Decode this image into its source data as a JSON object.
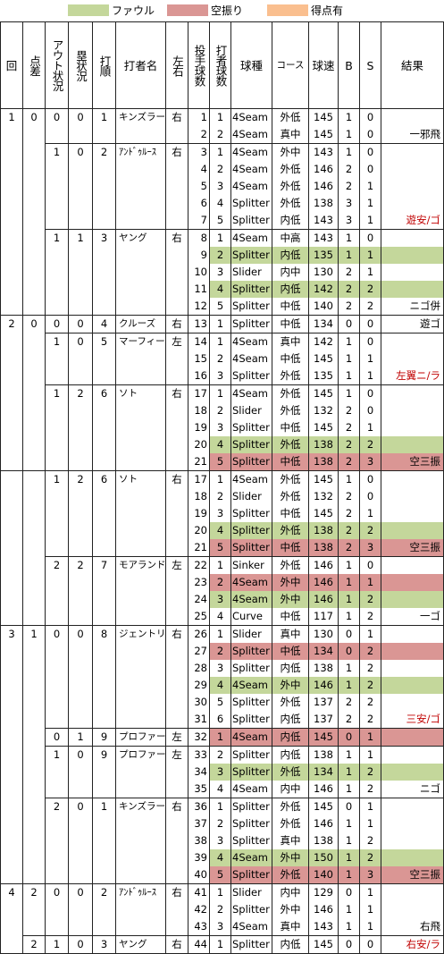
{
  "legend": [
    {
      "label": "ファウル",
      "color": "#c4d79b"
    },
    {
      "label": "空振り",
      "color": "#da9694"
    },
    {
      "label": "得点有",
      "color": "#fabf8f"
    }
  ],
  "headers": {
    "inning": "回",
    "diff": "点差",
    "outs": "アウト状況",
    "runners": "塁状況",
    "order": "打順",
    "batter": "打者名",
    "hand": "左右",
    "pitcher_count": "投手球数",
    "batter_count": "打者球数",
    "pitch_type": "球種",
    "course": "コース",
    "speed": "球速",
    "b": "B",
    "s": "S",
    "result": "結果"
  },
  "rows": [
    {
      "inn": "1",
      "diff": "0",
      "out": "0",
      "run": "0",
      "ord": "1",
      "name": "キンズラー",
      "hand": "右",
      "pc": "1",
      "bc": "1",
      "type": "4Seam",
      "course": "外低",
      "speed": "145",
      "b": "1",
      "s": "0",
      "res": "",
      "hl": "",
      "start": "inning"
    },
    {
      "pc": "2",
      "bc": "2",
      "type": "4Seam",
      "course": "真中",
      "speed": "145",
      "b": "1",
      "s": "0",
      "res": "一邪飛",
      "hl": ""
    },
    {
      "out": "1",
      "run": "0",
      "ord": "2",
      "name": "ｱﾝﾄﾞｩﾙｰｽ",
      "hand": "右",
      "pc": "3",
      "bc": "1",
      "type": "4Seam",
      "course": "外中",
      "speed": "143",
      "b": "1",
      "s": "0",
      "res": "",
      "hl": "",
      "start": "batter"
    },
    {
      "pc": "4",
      "bc": "2",
      "type": "4Seam",
      "course": "外低",
      "speed": "146",
      "b": "2",
      "s": "0",
      "res": "",
      "hl": ""
    },
    {
      "pc": "5",
      "bc": "3",
      "type": "4Seam",
      "course": "外低",
      "speed": "146",
      "b": "2",
      "s": "1",
      "res": "",
      "hl": ""
    },
    {
      "pc": "6",
      "bc": "4",
      "type": "Splitter",
      "course": "外低",
      "speed": "138",
      "b": "3",
      "s": "1",
      "res": "",
      "hl": ""
    },
    {
      "pc": "7",
      "bc": "5",
      "type": "Splitter",
      "course": "内低",
      "speed": "143",
      "b": "3",
      "s": "1",
      "res": "遊安/ゴ",
      "hl": "",
      "red": true
    },
    {
      "out": "1",
      "run": "1",
      "ord": "3",
      "name": "ヤング",
      "hand": "右",
      "pc": "8",
      "bc": "1",
      "type": "4Seam",
      "course": "中高",
      "speed": "143",
      "b": "1",
      "s": "0",
      "res": "",
      "hl": "",
      "start": "batter"
    },
    {
      "pc": "9",
      "bc": "2",
      "type": "Splitter",
      "course": "内低",
      "speed": "135",
      "b": "1",
      "s": "1",
      "res": "",
      "hl": "g"
    },
    {
      "pc": "10",
      "bc": "3",
      "type": "Slider",
      "course": "内中",
      "speed": "130",
      "b": "2",
      "s": "1",
      "res": "",
      "hl": ""
    },
    {
      "pc": "11",
      "bc": "4",
      "type": "Splitter",
      "course": "内低",
      "speed": "142",
      "b": "2",
      "s": "2",
      "res": "",
      "hl": "g"
    },
    {
      "pc": "12",
      "bc": "5",
      "type": "Splitter",
      "course": "中低",
      "speed": "140",
      "b": "2",
      "s": "2",
      "res": "ニゴ併",
      "hl": ""
    },
    {
      "inn": "2",
      "diff": "0",
      "out": "0",
      "run": "0",
      "ord": "4",
      "name": "クルーズ",
      "hand": "右",
      "pc": "13",
      "bc": "1",
      "type": "Splitter",
      "course": "中低",
      "speed": "134",
      "b": "0",
      "s": "0",
      "res": "遊ゴ",
      "hl": "",
      "start": "inning"
    },
    {
      "out": "1",
      "run": "0",
      "ord": "5",
      "name": "マーフィー",
      "hand": "左",
      "pc": "14",
      "bc": "1",
      "type": "4Seam",
      "course": "真中",
      "speed": "142",
      "b": "1",
      "s": "0",
      "res": "",
      "hl": "",
      "start": "batter"
    },
    {
      "pc": "15",
      "bc": "2",
      "type": "4Seam",
      "course": "中低",
      "speed": "145",
      "b": "1",
      "s": "1",
      "res": "",
      "hl": ""
    },
    {
      "pc": "16",
      "bc": "3",
      "type": "Splitter",
      "course": "外低",
      "speed": "135",
      "b": "1",
      "s": "1",
      "res": "左翼ニ/ラ",
      "hl": "",
      "red": true
    },
    {
      "out": "1",
      "run": "2",
      "ord": "6",
      "name": "ソト",
      "hand": "右",
      "pc": "17",
      "bc": "1",
      "type": "4Seam",
      "course": "外低",
      "speed": "145",
      "b": "1",
      "s": "0",
      "res": "",
      "hl": "",
      "start": "batter"
    },
    {
      "pc": "18",
      "bc": "2",
      "type": "Slider",
      "course": "外低",
      "speed": "132",
      "b": "2",
      "s": "0",
      "res": "",
      "hl": ""
    },
    {
      "pc": "19",
      "bc": "3",
      "type": "Splitter",
      "course": "中低",
      "speed": "145",
      "b": "2",
      "s": "1",
      "res": "",
      "hl": ""
    },
    {
      "pc": "20",
      "bc": "4",
      "type": "Splitter",
      "course": "外低",
      "speed": "138",
      "b": "2",
      "s": "2",
      "res": "",
      "hl": "g"
    },
    {
      "pc": "21",
      "bc": "5",
      "type": "Splitter",
      "course": "中低",
      "speed": "138",
      "b": "2",
      "s": "3",
      "res": "空三振",
      "hl": "r"
    },
    {
      "out": "1",
      "run": "2",
      "ord": "6",
      "name": "ソト",
      "hand": "右",
      "pc": "17",
      "bc": "1",
      "type": "4Seam",
      "course": "外低",
      "speed": "145",
      "b": "1",
      "s": "0",
      "res": "",
      "hl": "",
      "start": "batter",
      "noInning": true
    },
    {
      "pc": "18",
      "bc": "2",
      "type": "Slider",
      "course": "外低",
      "speed": "132",
      "b": "2",
      "s": "0",
      "res": "",
      "hl": ""
    },
    {
      "pc": "19",
      "bc": "3",
      "type": "Splitter",
      "course": "中低",
      "speed": "145",
      "b": "2",
      "s": "1",
      "res": "",
      "hl": ""
    },
    {
      "pc": "20",
      "bc": "4",
      "type": "Splitter",
      "course": "外低",
      "speed": "138",
      "b": "2",
      "s": "2",
      "res": "",
      "hl": "g"
    },
    {
      "pc": "21",
      "bc": "5",
      "type": "Splitter",
      "course": "中低",
      "speed": "138",
      "b": "2",
      "s": "3",
      "res": "空三振",
      "hl": "r"
    },
    {
      "out": "2",
      "run": "2",
      "ord": "7",
      "name": "モアランド",
      "hand": "左",
      "pc": "22",
      "bc": "1",
      "type": "Sinker",
      "course": "外低",
      "speed": "146",
      "b": "1",
      "s": "0",
      "res": "",
      "hl": "",
      "start": "batter"
    },
    {
      "pc": "23",
      "bc": "2",
      "type": "4Seam",
      "course": "外中",
      "speed": "146",
      "b": "1",
      "s": "1",
      "res": "",
      "hl": "r"
    },
    {
      "pc": "24",
      "bc": "3",
      "type": "4Seam",
      "course": "外中",
      "speed": "146",
      "b": "1",
      "s": "2",
      "res": "",
      "hl": "g"
    },
    {
      "pc": "25",
      "bc": "4",
      "type": "Curve",
      "course": "中低",
      "speed": "117",
      "b": "1",
      "s": "2",
      "res": "一ゴ",
      "hl": ""
    },
    {
      "inn": "3",
      "diff": "1",
      "out": "0",
      "run": "0",
      "ord": "8",
      "name": "ジェントリー",
      "hand": "右",
      "pc": "26",
      "bc": "1",
      "type": "Slider",
      "course": "真中",
      "speed": "130",
      "b": "0",
      "s": "1",
      "res": "",
      "hl": "",
      "start": "inning"
    },
    {
      "pc": "27",
      "bc": "2",
      "type": "Splitter",
      "course": "中低",
      "speed": "134",
      "b": "0",
      "s": "2",
      "res": "",
      "hl": "r"
    },
    {
      "pc": "28",
      "bc": "3",
      "type": "Splitter",
      "course": "内低",
      "speed": "138",
      "b": "1",
      "s": "2",
      "res": "",
      "hl": ""
    },
    {
      "pc": "29",
      "bc": "4",
      "type": "4Seam",
      "course": "外中",
      "speed": "146",
      "b": "1",
      "s": "2",
      "res": "",
      "hl": "g"
    },
    {
      "pc": "30",
      "bc": "5",
      "type": "Splitter",
      "course": "外低",
      "speed": "137",
      "b": "2",
      "s": "2",
      "res": "",
      "hl": ""
    },
    {
      "pc": "31",
      "bc": "6",
      "type": "Splitter",
      "course": "内低",
      "speed": "137",
      "b": "2",
      "s": "2",
      "res": "三安/ゴ",
      "hl": "",
      "red": true
    },
    {
      "out": "0",
      "run": "1",
      "ord": "9",
      "name": "プロファー",
      "hand": "左",
      "pc": "32",
      "bc": "1",
      "type": "4Seam",
      "course": "内低",
      "speed": "145",
      "b": "0",
      "s": "1",
      "res": "",
      "hl": "r",
      "start": "batter"
    },
    {
      "out": "1",
      "run": "0",
      "ord": "9",
      "name": "プロファー",
      "hand": "左",
      "pc": "33",
      "bc": "2",
      "type": "Splitter",
      "course": "内低",
      "speed": "138",
      "b": "1",
      "s": "1",
      "res": "",
      "hl": "",
      "start": "batter"
    },
    {
      "pc": "34",
      "bc": "3",
      "type": "Splitter",
      "course": "外低",
      "speed": "134",
      "b": "1",
      "s": "2",
      "res": "",
      "hl": "g"
    },
    {
      "pc": "35",
      "bc": "4",
      "type": "4Seam",
      "course": "内中",
      "speed": "146",
      "b": "1",
      "s": "2",
      "res": "ニゴ",
      "hl": ""
    },
    {
      "out": "2",
      "run": "0",
      "ord": "1",
      "name": "キンズラー",
      "hand": "右",
      "pc": "36",
      "bc": "1",
      "type": "Splitter",
      "course": "外低",
      "speed": "145",
      "b": "0",
      "s": "1",
      "res": "",
      "hl": "",
      "start": "batter"
    },
    {
      "pc": "37",
      "bc": "2",
      "type": "Splitter",
      "course": "外低",
      "speed": "146",
      "b": "1",
      "s": "1",
      "res": "",
      "hl": ""
    },
    {
      "pc": "38",
      "bc": "3",
      "type": "Splitter",
      "course": "真中",
      "speed": "138",
      "b": "1",
      "s": "2",
      "res": "",
      "hl": ""
    },
    {
      "pc": "39",
      "bc": "4",
      "type": "4Seam",
      "course": "外中",
      "speed": "150",
      "b": "1",
      "s": "2",
      "res": "",
      "hl": "g"
    },
    {
      "pc": "40",
      "bc": "5",
      "type": "Splitter",
      "course": "外低",
      "speed": "140",
      "b": "1",
      "s": "3",
      "res": "空三振",
      "hl": "r"
    },
    {
      "inn": "4",
      "diff": "2",
      "out": "0",
      "run": "0",
      "ord": "2",
      "name": "ｱﾝﾄﾞｩﾙｰｽ",
      "hand": "右",
      "pc": "41",
      "bc": "1",
      "type": "Slider",
      "course": "内中",
      "speed": "129",
      "b": "0",
      "s": "1",
      "res": "",
      "hl": "",
      "start": "inning"
    },
    {
      "pc": "42",
      "bc": "2",
      "type": "Splitter",
      "course": "外中",
      "speed": "146",
      "b": "1",
      "s": "1",
      "res": "",
      "hl": ""
    },
    {
      "pc": "43",
      "bc": "3",
      "type": "4Seam",
      "course": "真中",
      "speed": "143",
      "b": "1",
      "s": "1",
      "res": "右飛",
      "hl": ""
    },
    {
      "diff": "2",
      "out": "1",
      "run": "0",
      "ord": "3",
      "name": "ヤング",
      "hand": "右",
      "pc": "44",
      "bc": "1",
      "type": "Splitter",
      "course": "内低",
      "speed": "145",
      "b": "0",
      "s": "0",
      "res": "右安/ラ",
      "hl": "",
      "red": true,
      "start": "batter",
      "diffShift": true
    }
  ]
}
